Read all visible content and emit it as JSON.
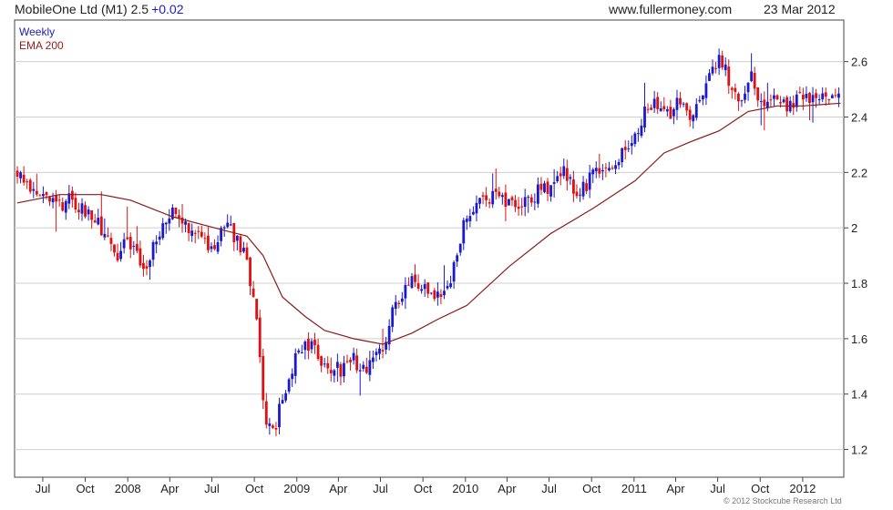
{
  "header": {
    "title": "MobileOne Ltd (M1) 2.5",
    "change": "+0.02",
    "site": "www.fullermoney.com",
    "date": "23 Mar 2012"
  },
  "legend": {
    "weekly": "Weekly",
    "ema": "EMA 200"
  },
  "footer": {
    "copyright": "© 2012 Stockcube Research Ltd"
  },
  "colors": {
    "up": "#1a1acc",
    "down": "#dd1111",
    "ema": "#8b1a1a",
    "grid": "#cfcfcf",
    "axis": "#444444"
  },
  "chart_data": {
    "type": "candlestick",
    "title": "MobileOne Ltd (M1) 2.5",
    "xlabel": "",
    "ylabel": "",
    "ylim": [
      1.1,
      2.75
    ],
    "xlim": [
      "2007-05-01",
      "2012-03-30"
    ],
    "grid": true,
    "y_ticks": [
      1.2,
      1.4,
      1.6,
      1.8,
      2,
      2.2,
      2.4,
      2.6
    ],
    "x_ticks": [
      {
        "label": "Jul",
        "date": "2007-07-01"
      },
      {
        "label": "Oct",
        "date": "2007-10-01"
      },
      {
        "label": "2008",
        "date": "2008-01-01"
      },
      {
        "label": "Apr",
        "date": "2008-04-01"
      },
      {
        "label": "Jul",
        "date": "2008-07-01"
      },
      {
        "label": "Oct",
        "date": "2008-10-01"
      },
      {
        "label": "2009",
        "date": "2009-01-01"
      },
      {
        "label": "Apr",
        "date": "2009-04-01"
      },
      {
        "label": "Jul",
        "date": "2009-07-01"
      },
      {
        "label": "Oct",
        "date": "2009-10-01"
      },
      {
        "label": "2010",
        "date": "2010-01-01"
      },
      {
        "label": "Apr",
        "date": "2010-04-01"
      },
      {
        "label": "Jul",
        "date": "2010-07-01"
      },
      {
        "label": "Oct",
        "date": "2010-10-01"
      },
      {
        "label": "2011",
        "date": "2011-01-01"
      },
      {
        "label": "Apr",
        "date": "2011-04-01"
      },
      {
        "label": "Jul",
        "date": "2011-07-01"
      },
      {
        "label": "Oct",
        "date": "2011-10-01"
      },
      {
        "label": "2012",
        "date": "2012-01-01"
      }
    ],
    "series": [
      {
        "name": "Weekly",
        "kind": "close",
        "points": [
          [
            "2007-05-07",
            2.2
          ],
          [
            "2007-06-04",
            2.16
          ],
          [
            "2007-07-02",
            2.12
          ],
          [
            "2007-08-06",
            2.08
          ],
          [
            "2007-09-03",
            2.1
          ],
          [
            "2007-10-01",
            2.05
          ],
          [
            "2007-11-05",
            2.0
          ],
          [
            "2007-12-03",
            1.9
          ],
          [
            "2008-01-07",
            1.95
          ],
          [
            "2008-02-04",
            1.86
          ],
          [
            "2008-03-03",
            1.95
          ],
          [
            "2008-04-07",
            2.05
          ],
          [
            "2008-05-05",
            2.0
          ],
          [
            "2008-06-02",
            1.97
          ],
          [
            "2008-07-07",
            1.92
          ],
          [
            "2008-07-28",
            2.02
          ],
          [
            "2008-08-25",
            1.95
          ],
          [
            "2008-09-15",
            1.88
          ],
          [
            "2008-10-06",
            1.65
          ],
          [
            "2008-10-27",
            1.28
          ],
          [
            "2008-11-17",
            1.3
          ],
          [
            "2008-12-08",
            1.43
          ],
          [
            "2009-01-05",
            1.56
          ],
          [
            "2009-02-02",
            1.57
          ],
          [
            "2009-03-02",
            1.5
          ],
          [
            "2009-04-06",
            1.49
          ],
          [
            "2009-05-04",
            1.52
          ],
          [
            "2009-06-01",
            1.5
          ],
          [
            "2009-07-06",
            1.58
          ],
          [
            "2009-08-03",
            1.72
          ],
          [
            "2009-09-07",
            1.8
          ],
          [
            "2009-10-05",
            1.77
          ],
          [
            "2009-11-02",
            1.74
          ],
          [
            "2009-12-07",
            1.85
          ],
          [
            "2010-01-04",
            2.05
          ],
          [
            "2010-02-01",
            2.08
          ],
          [
            "2010-03-01",
            2.12
          ],
          [
            "2010-04-05",
            2.1
          ],
          [
            "2010-05-03",
            2.08
          ],
          [
            "2010-06-07",
            2.13
          ],
          [
            "2010-07-05",
            2.14
          ],
          [
            "2010-08-02",
            2.2
          ],
          [
            "2010-09-06",
            2.12
          ],
          [
            "2010-10-04",
            2.2
          ],
          [
            "2010-11-01",
            2.23
          ],
          [
            "2010-12-06",
            2.26
          ],
          [
            "2011-01-03",
            2.35
          ],
          [
            "2011-02-07",
            2.45
          ],
          [
            "2011-03-07",
            2.4
          ],
          [
            "2011-04-04",
            2.44
          ],
          [
            "2011-05-02",
            2.4
          ],
          [
            "2011-06-06",
            2.5
          ],
          [
            "2011-07-04",
            2.63
          ],
          [
            "2011-08-01",
            2.5
          ],
          [
            "2011-08-22",
            2.45
          ],
          [
            "2011-09-12",
            2.55
          ],
          [
            "2011-10-03",
            2.45
          ],
          [
            "2011-11-07",
            2.47
          ],
          [
            "2011-12-05",
            2.44
          ],
          [
            "2012-01-02",
            2.48
          ],
          [
            "2012-02-06",
            2.45
          ],
          [
            "2012-03-05",
            2.48
          ],
          [
            "2012-03-23",
            2.5
          ]
        ]
      },
      {
        "name": "EMA 200",
        "kind": "line",
        "points": [
          [
            "2007-05-07",
            2.09
          ],
          [
            "2007-08-06",
            2.12
          ],
          [
            "2007-11-05",
            2.12
          ],
          [
            "2008-01-07",
            2.1
          ],
          [
            "2008-04-07",
            2.04
          ],
          [
            "2008-07-07",
            2.0
          ],
          [
            "2008-09-15",
            1.97
          ],
          [
            "2008-10-20",
            1.9
          ],
          [
            "2008-12-01",
            1.75
          ],
          [
            "2009-01-19",
            1.68
          ],
          [
            "2009-03-02",
            1.63
          ],
          [
            "2009-05-04",
            1.6
          ],
          [
            "2009-07-06",
            1.58
          ],
          [
            "2009-09-07",
            1.62
          ],
          [
            "2009-11-02",
            1.67
          ],
          [
            "2010-01-04",
            1.72
          ],
          [
            "2010-04-05",
            1.86
          ],
          [
            "2010-07-05",
            1.98
          ],
          [
            "2010-10-04",
            2.07
          ],
          [
            "2011-01-03",
            2.17
          ],
          [
            "2011-03-07",
            2.27
          ],
          [
            "2011-05-02",
            2.31
          ],
          [
            "2011-07-04",
            2.35
          ],
          [
            "2011-09-05",
            2.42
          ],
          [
            "2011-11-07",
            2.44
          ],
          [
            "2012-01-02",
            2.44
          ],
          [
            "2012-03-23",
            2.45
          ]
        ]
      }
    ]
  }
}
